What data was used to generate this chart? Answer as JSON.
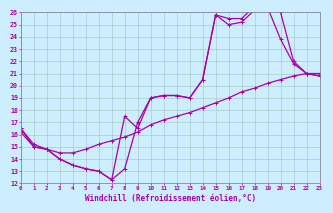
{
  "xlabel": "Windchill (Refroidissement éolien,°C)",
  "xlim": [
    0,
    23
  ],
  "ylim": [
    12,
    26
  ],
  "xticks": [
    0,
    1,
    2,
    3,
    4,
    5,
    6,
    7,
    8,
    9,
    10,
    11,
    12,
    13,
    14,
    15,
    16,
    17,
    18,
    19,
    20,
    21,
    22,
    23
  ],
  "yticks": [
    12,
    13,
    14,
    15,
    16,
    17,
    18,
    19,
    20,
    21,
    22,
    23,
    24,
    25,
    26
  ],
  "bg_color": "#cceeff",
  "grid_color": "#aacccc",
  "line_color": "#aa00aa",
  "line1_x": [
    0,
    1,
    2,
    3,
    4,
    5,
    6,
    7,
    8,
    9,
    10,
    11,
    12,
    13,
    14,
    15,
    16,
    17,
    18,
    19,
    20,
    21,
    22,
    23
  ],
  "line1_y": [
    16.5,
    15.0,
    14.8,
    14.0,
    13.5,
    13.2,
    13.0,
    12.3,
    13.2,
    17.0,
    19.0,
    19.2,
    19.2,
    19.0,
    20.5,
    25.8,
    25.0,
    25.2,
    26.2,
    26.4,
    23.8,
    21.8,
    21.0,
    20.8
  ],
  "line2_x": [
    0,
    1,
    2,
    3,
    4,
    5,
    6,
    7,
    8,
    9,
    10,
    11,
    12,
    13,
    14,
    15,
    16,
    17,
    18,
    19,
    20,
    21,
    22,
    23
  ],
  "line2_y": [
    16.5,
    15.2,
    14.8,
    14.0,
    13.5,
    13.2,
    13.0,
    12.3,
    17.5,
    16.5,
    19.0,
    19.2,
    19.2,
    19.0,
    20.5,
    25.8,
    25.5,
    25.5,
    26.5,
    26.4,
    26.0,
    22.0,
    21.0,
    20.8
  ],
  "line3_x": [
    0,
    1,
    2,
    3,
    4,
    5,
    6,
    7,
    8,
    9,
    10,
    11,
    12,
    13,
    14,
    15,
    16,
    17,
    18,
    19,
    20,
    21,
    22,
    23
  ],
  "line3_y": [
    16.2,
    15.0,
    14.8,
    14.5,
    14.5,
    14.8,
    15.2,
    15.5,
    15.8,
    16.2,
    16.8,
    17.2,
    17.5,
    17.8,
    18.2,
    18.6,
    19.0,
    19.5,
    19.8,
    20.2,
    20.5,
    20.8,
    21.0,
    21.0
  ]
}
